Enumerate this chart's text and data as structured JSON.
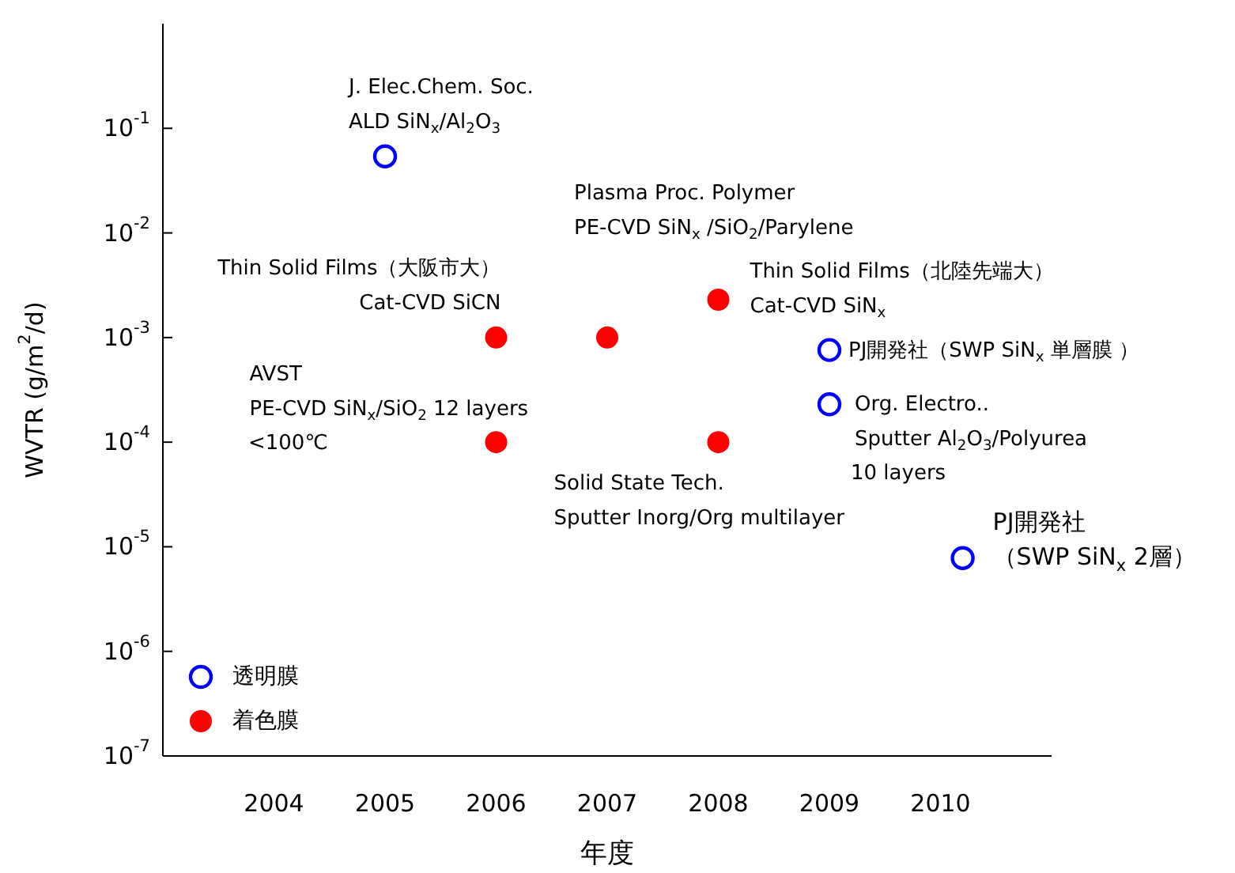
{
  "chart_data": {
    "type": "scatter",
    "xlabel": "年度",
    "ylabel": "WVTR (g/m$^{2}$/d)",
    "log": "y",
    "marker": "circle",
    "legend": "bottom left",
    "grid": false,
    "xlim": [
      2003,
      2011
    ],
    "xticks": [
      2004,
      2005,
      2006,
      2007,
      2008,
      2009,
      2010
    ],
    "ylim": [
      1e-07,
      1
    ],
    "yticks": [
      {
        "value": 1e-07,
        "label": "10$^{-7}$"
      },
      {
        "value": 1e-06,
        "label": "10$^{-6}$"
      },
      {
        "value": 1e-05,
        "label": "10$^{-5}$"
      },
      {
        "value": 0.0001,
        "label": "10$^{-4}$"
      },
      {
        "value": 0.001,
        "label": "10$^{-3}$"
      },
      {
        "value": 0.01,
        "label": "10$^{-2}$"
      },
      {
        "value": 0.1,
        "label": "10$^{-1}$"
      }
    ],
    "series": [
      {
        "name": "透明膜",
        "color": "#0000ff",
        "x": [
          2005,
          2009,
          2009,
          2010.2
        ],
        "values": [
          0.054,
          0.00076,
          0.00023,
          7.8e-06
        ]
      },
      {
        "name": "着色膜",
        "color": "#ff0000",
        "x": [
          2006,
          2007,
          2008,
          2006,
          2008
        ],
        "values": [
          0.001,
          0.001,
          0.0023,
          0.0001,
          0.0001
        ]
      }
    ],
    "annotations": [
      {
        "text": "J. Elec.Chem. Soc.\nALD SiN$_{x}$/Al$_{2}$O$_{3}$",
        "x": 2005,
        "y": 0.054
      },
      "Plasma Proc. Polymer\nPE-CVD SiN$_{x}$ /SiO$_{2}$/Parylene",
      {
        "text": "Thin Solid Films（大阪市大）\nCat-CVD SiCN",
        "x": 2006,
        "y": 0.001
      },
      {
        "text": "Thin Solid Films（北陸先端大）\nCat-CVD SiN$_{x}$",
        "x": 2008,
        "y": 0.0023
      },
      {
        "text": "AVST\nPE-CVD SiN$_{x}$/SiO$_{2}$ 12 layers",
        "x": 2006,
        "y": 0.0001
      },
      "<100℃",
      {
        "text": "Solid State Tech.\nSputter Inorg/Org multilayer",
        "x": 2008,
        "y": 0.0001
      },
      {
        "text": "PJ開発社（SWP SiN$_{x}$ 単層膜 ）",
        "x": 2009,
        "y": 0.00076
      },
      {
        "text": "Org. Electro..\nSputter Al$_{2}$O$_{3}$/Polyurea",
        "x": 2009,
        "y": 0.00023
      },
      "10 layers",
      {
        "text": "PJ開発社（SWP SiN$_{x}$ 2層）",
        "x": 2010.2,
        "y": 7.8e-06
      }
    ]
  }
}
